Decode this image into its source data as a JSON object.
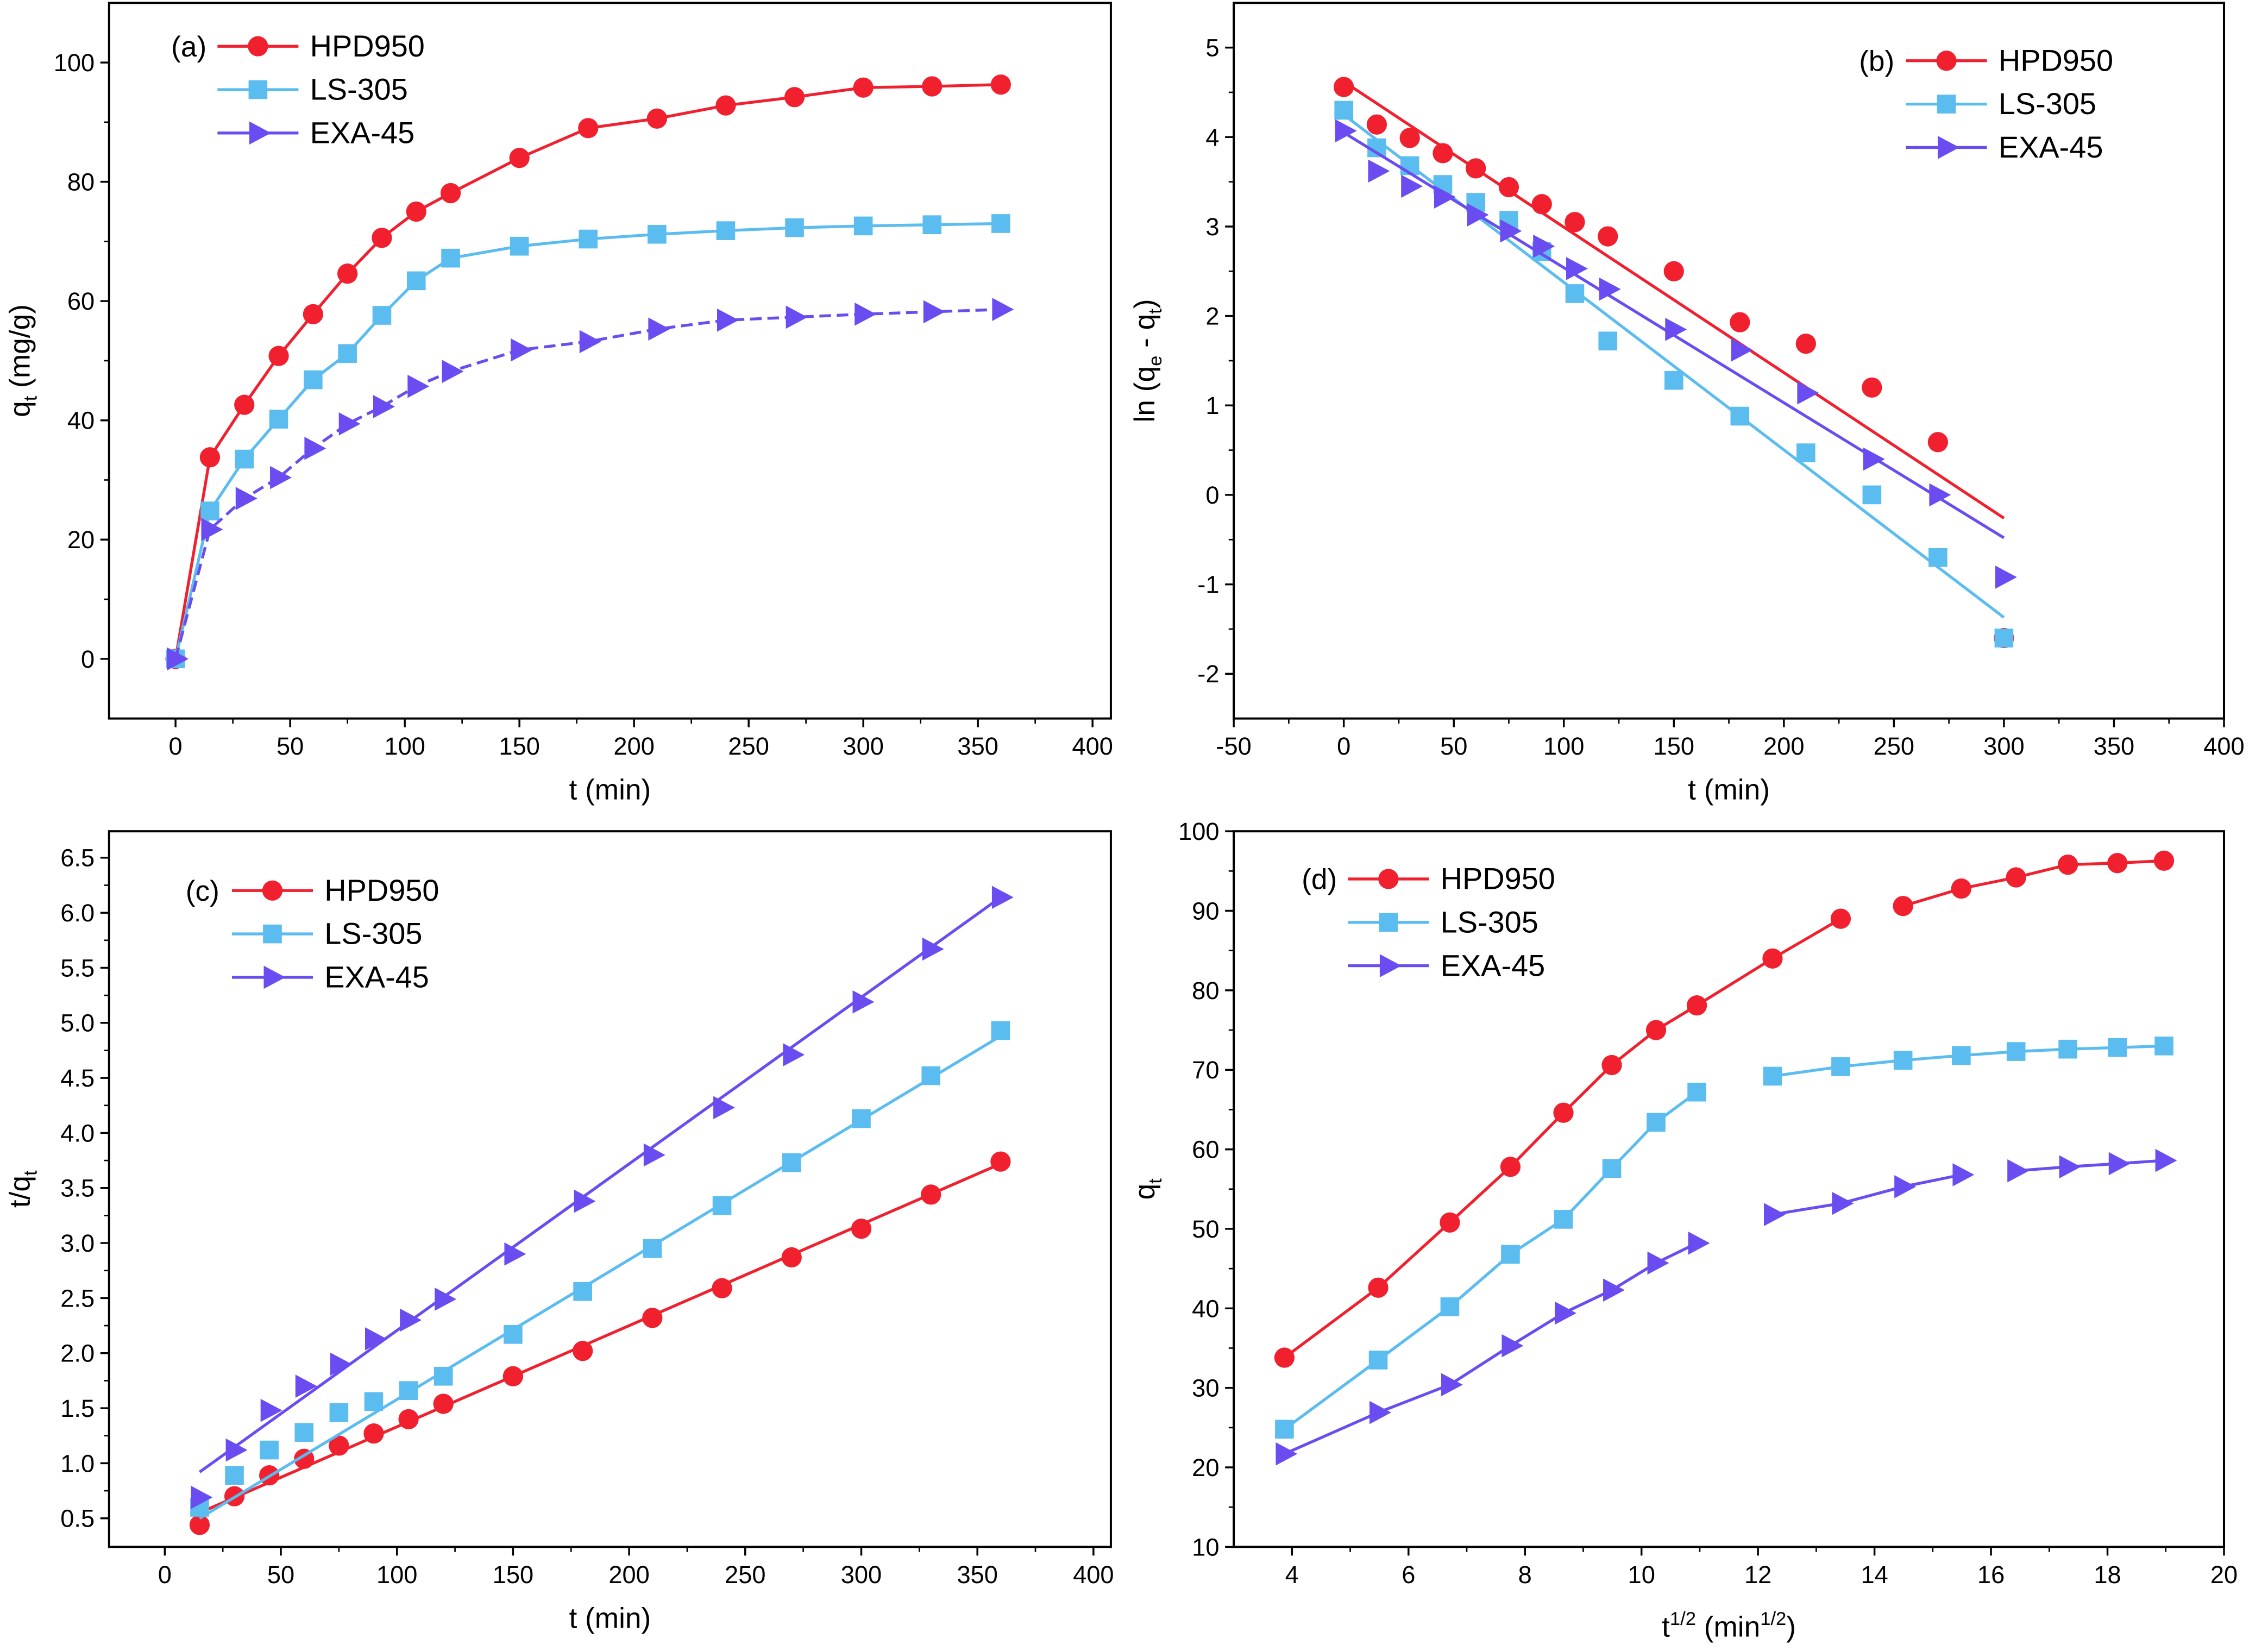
{
  "colors": {
    "HPD950": "#f0202f",
    "LS-305": "#5bbcf0",
    "EXA-45": "#6a4cf0"
  },
  "chart_data": [
    {
      "type": "line",
      "panel_label": "(a)",
      "xlabel": "t (min)",
      "ylabel_parts": [
        "q",
        "t",
        " (mg/g)"
      ],
      "xlim": [
        -29,
        408
      ],
      "ylim": [
        -10,
        110
      ],
      "xticks": [
        0,
        50,
        100,
        150,
        200,
        250,
        300,
        350,
        400
      ],
      "yticks": [
        0,
        20,
        40,
        60,
        80,
        100
      ],
      "x": [
        0,
        15,
        30,
        45,
        60,
        75,
        90,
        105,
        120,
        150,
        180,
        210,
        240,
        270,
        300,
        330,
        360
      ],
      "series": [
        {
          "name": "HPD950",
          "marker": "circle",
          "values": [
            0,
            33.8,
            42.6,
            50.8,
            57.8,
            64.6,
            70.6,
            75,
            78.1,
            84,
            89,
            90.6,
            92.8,
            94.2,
            95.8,
            96,
            96.3
          ]
        },
        {
          "name": "LS-305",
          "marker": "square",
          "values": [
            0,
            24.8,
            33.5,
            40.2,
            46.8,
            51.2,
            57.6,
            63.4,
            67.2,
            69.2,
            70.4,
            71.2,
            71.8,
            72.3,
            72.6,
            72.8,
            73
          ]
        },
        {
          "name": "EXA-45",
          "marker": "triangle",
          "values": [
            0,
            21.7,
            26.9,
            30.4,
            35.3,
            39.4,
            42.3,
            45.7,
            48.2,
            51.8,
            53.2,
            55.3,
            56.8,
            57.3,
            57.8,
            58.2,
            58.6
          ]
        }
      ],
      "legend": "top-left"
    },
    {
      "type": "scatter",
      "panel_label": "(b)",
      "xlabel": "t (min)",
      "ylabel_parts": [
        "ln (q",
        "e",
        " - q",
        "t",
        ")"
      ],
      "xlim": [
        -50,
        400
      ],
      "ylim": [
        -2.5,
        5.5
      ],
      "xticks": [
        -50,
        0,
        50,
        100,
        150,
        200,
        250,
        300,
        350,
        400
      ],
      "yticks": [
        -2,
        -1,
        0,
        1,
        2,
        3,
        4,
        5
      ],
      "x": [
        0,
        15,
        30,
        45,
        60,
        75,
        90,
        105,
        120,
        150,
        180,
        210,
        240,
        270,
        300
      ],
      "series": [
        {
          "name": "HPD950",
          "marker": "circle",
          "values": [
            4.56,
            4.14,
            3.99,
            3.82,
            3.65,
            3.44,
            3.25,
            3.05,
            2.89,
            2.5,
            1.93,
            1.69,
            1.2,
            0.59,
            -1.6
          ],
          "fit": [
            [
              0,
              4.62
            ],
            [
              300,
              -0.26
            ]
          ]
        },
        {
          "name": "LS-305",
          "marker": "square",
          "values": [
            4.3,
            3.88,
            3.68,
            3.47,
            3.27,
            3.07,
            2.72,
            2.25,
            1.72,
            1.28,
            0.88,
            0.47,
            0.0,
            -0.7,
            -1.6
          ],
          "fit": [
            [
              0,
              4.25
            ],
            [
              300,
              -1.37
            ]
          ]
        },
        {
          "name": "EXA-45",
          "marker": "triangle",
          "values": [
            4.07,
            3.62,
            3.45,
            3.33,
            3.13,
            2.95,
            2.78,
            2.53,
            2.3,
            1.85,
            1.62,
            1.14,
            0.4,
            0.0,
            -0.92
          ],
          "fit": [
            [
              0,
              4.05
            ],
            [
              300,
              -0.48
            ]
          ]
        }
      ],
      "legend": "top-right"
    },
    {
      "type": "scatter",
      "panel_label": "(c)",
      "xlabel": "t (min)",
      "ylabel_parts": [
        "t/q",
        "t",
        ""
      ],
      "xlim": [
        -24,
        407.5
      ],
      "ylim": [
        0.24,
        6.74
      ],
      "xticks": [
        0,
        50,
        100,
        150,
        200,
        250,
        300,
        350,
        400
      ],
      "yticks": [
        0.5,
        1.0,
        1.5,
        2.0,
        2.5,
        3.0,
        3.5,
        4.0,
        4.5,
        5.0,
        5.5,
        6.0,
        6.5
      ],
      "x": [
        15,
        30,
        45,
        60,
        75,
        90,
        105,
        120,
        150,
        180,
        210,
        240,
        270,
        300,
        330,
        360
      ],
      "series": [
        {
          "name": "HPD950",
          "marker": "circle",
          "values": [
            0.44,
            0.7,
            0.89,
            1.04,
            1.16,
            1.27,
            1.4,
            1.54,
            1.79,
            2.02,
            2.32,
            2.59,
            2.87,
            3.13,
            3.44,
            3.74
          ],
          "fit": [
            [
              15,
              0.55
            ],
            [
              360,
              3.72
            ]
          ]
        },
        {
          "name": "LS-305",
          "marker": "square",
          "values": [
            0.6,
            0.89,
            1.12,
            1.28,
            1.46,
            1.56,
            1.66,
            1.79,
            2.17,
            2.56,
            2.95,
            3.34,
            3.73,
            4.13,
            4.52,
            4.93
          ],
          "fit": [
            [
              15,
              0.5
            ],
            [
              360,
              4.88
            ]
          ]
        },
        {
          "name": "EXA-45",
          "marker": "triangle",
          "values": [
            0.69,
            1.12,
            1.48,
            1.7,
            1.9,
            2.13,
            2.3,
            2.49,
            2.9,
            3.38,
            3.8,
            4.23,
            4.71,
            5.19,
            5.67,
            6.14
          ],
          "fit": [
            [
              15,
              0.92
            ],
            [
              360,
              6.14
            ]
          ]
        }
      ],
      "legend": "top-left"
    },
    {
      "type": "line",
      "panel_label": "(d)",
      "xlabel_parts": [
        "t",
        "1/2",
        " (min",
        "1/2",
        ")"
      ],
      "ylabel_parts": [
        "q",
        "t",
        ""
      ],
      "xlim": [
        3,
        20
      ],
      "ylim": [
        10,
        100
      ],
      "xticks": [
        4,
        6,
        8,
        10,
        12,
        14,
        16,
        18,
        20
      ],
      "yticks": [
        10,
        20,
        30,
        40,
        50,
        60,
        70,
        80,
        90,
        100
      ],
      "x": [
        3.87,
        5.48,
        6.71,
        7.75,
        8.66,
        9.49,
        10.25,
        10.95,
        12.25,
        13.42,
        14.49,
        15.49,
        16.43,
        17.32,
        18.17,
        18.97
      ],
      "series": [
        {
          "name": "HPD950",
          "marker": "circle",
          "values": [
            33.8,
            42.6,
            50.8,
            57.8,
            64.6,
            70.6,
            75,
            78.1,
            84,
            89,
            90.6,
            92.8,
            94.2,
            95.8,
            96,
            96.3
          ],
          "segments": [
            [
              0,
              9
            ],
            [
              10,
              15
            ]
          ]
        },
        {
          "name": "LS-305",
          "marker": "square",
          "values": [
            24.8,
            33.5,
            40.2,
            46.8,
            51.2,
            57.6,
            63.4,
            67.2,
            69.2,
            70.4,
            71.2,
            71.8,
            72.3,
            72.6,
            72.8,
            73
          ],
          "segments": [
            [
              0,
              7
            ],
            [
              8,
              15
            ]
          ]
        },
        {
          "name": "EXA-45",
          "marker": "triangle",
          "values": [
            21.7,
            26.9,
            30.4,
            35.3,
            39.4,
            42.3,
            45.7,
            48.2,
            51.8,
            53.2,
            55.3,
            56.8,
            57.3,
            57.8,
            58.2,
            58.6
          ],
          "segments": [
            [
              0,
              7
            ],
            [
              8,
              11
            ],
            [
              12,
              15
            ]
          ]
        }
      ],
      "legend": "top-left"
    }
  ]
}
